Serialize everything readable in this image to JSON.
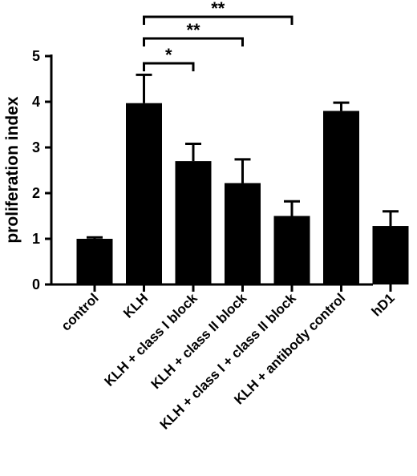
{
  "chart_data": {
    "type": "bar",
    "title": "",
    "xlabel": "",
    "ylabel": "proliferation index",
    "ylim": [
      0,
      5
    ],
    "yticks": [
      0,
      1,
      2,
      3,
      4,
      5
    ],
    "grid": false,
    "legend": "none",
    "bar_color": "#000000",
    "categories": [
      "control",
      "KLH",
      "KLH + class I block",
      "KLH + class II block",
      "KLH + class I + class II block",
      "KLH + antibody control",
      "hD1"
    ],
    "values": [
      1.0,
      3.97,
      2.7,
      2.22,
      1.5,
      3.8,
      1.28
    ],
    "errors": [
      0.03,
      0.62,
      0.38,
      0.52,
      0.32,
      0.18,
      0.32
    ],
    "significance": [
      {
        "from": 1,
        "to": 2,
        "label": "*"
      },
      {
        "from": 1,
        "to": 3,
        "label": "**"
      },
      {
        "from": 1,
        "to": 4,
        "label": "**"
      }
    ]
  }
}
